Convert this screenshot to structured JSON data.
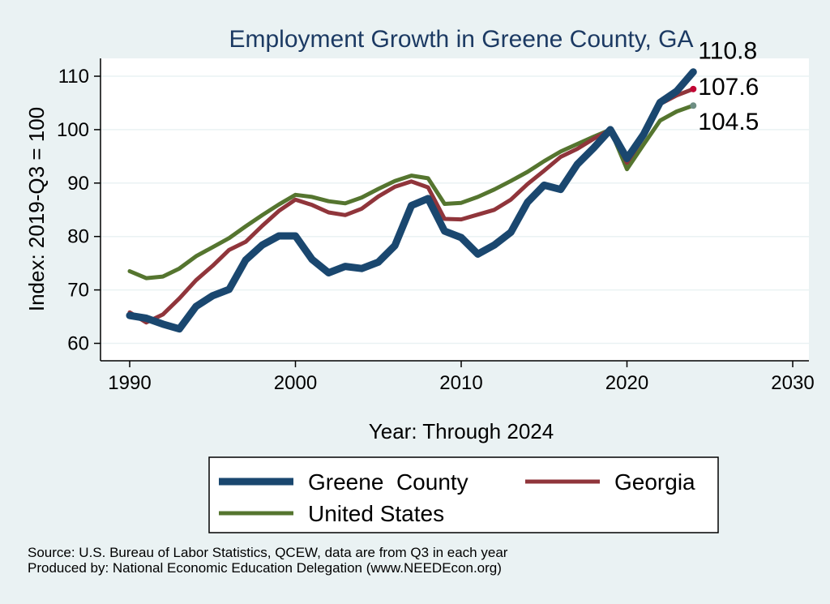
{
  "chart_data": {
    "type": "line",
    "title": "Employment Growth in Greene County, GA",
    "xlabel": "Year: Through 2024",
    "ylabel": "Index: 2019-Q3 = 100",
    "xlim": [
      1990,
      2030
    ],
    "ylim": [
      60,
      113
    ],
    "xticks": [
      1990,
      2000,
      2010,
      2020,
      2030
    ],
    "yticks": [
      60,
      70,
      80,
      90,
      100,
      110
    ],
    "grid": "horizontal",
    "legend_position": "bottom",
    "x": [
      1990,
      1991,
      1992,
      1993,
      1994,
      1995,
      1996,
      1997,
      1998,
      1999,
      2000,
      2001,
      2002,
      2003,
      2004,
      2005,
      2006,
      2007,
      2008,
      2009,
      2010,
      2011,
      2012,
      2013,
      2014,
      2015,
      2016,
      2017,
      2018,
      2019,
      2020,
      2021,
      2022,
      2023,
      2024
    ],
    "series": [
      {
        "name": "Greene  County",
        "color": "#1a476f",
        "width": 9,
        "values": [
          65.2,
          64.7,
          63.6,
          62.7,
          66.9,
          68.9,
          70.1,
          75.6,
          78.4,
          80.1,
          80.1,
          75.7,
          73.2,
          74.4,
          74.0,
          75.2,
          78.3,
          85.8,
          87.1,
          81.0,
          79.8,
          76.7,
          78.4,
          80.8,
          86.4,
          89.6,
          88.8,
          93.5,
          96.6,
          100.0,
          94.6,
          99.1,
          105.1,
          107.2,
          110.8
        ],
        "end_label": "110.8",
        "marker_color": "#1a476f"
      },
      {
        "name": "Georgia",
        "color": "#90353b",
        "width": 5,
        "values": [
          65.8,
          63.9,
          65.4,
          68.4,
          71.8,
          74.5,
          77.5,
          79.0,
          82.0,
          84.8,
          86.9,
          85.9,
          84.5,
          84.0,
          85.2,
          87.5,
          89.3,
          90.3,
          89.2,
          83.3,
          83.2,
          84.1,
          85.0,
          86.9,
          89.8,
          92.3,
          94.9,
          96.4,
          98.3,
          100.0,
          93.8,
          98.6,
          104.8,
          106.4,
          107.6
        ],
        "end_label": "107.6",
        "marker_color": "#c10534"
      },
      {
        "name": "United States",
        "color": "#55752f",
        "width": 5,
        "values": [
          73.5,
          72.2,
          72.5,
          74.0,
          76.3,
          78.0,
          79.7,
          81.9,
          84.0,
          86.0,
          87.8,
          87.4,
          86.6,
          86.2,
          87.3,
          88.9,
          90.4,
          91.4,
          90.9,
          86.1,
          86.3,
          87.4,
          88.8,
          90.4,
          92.1,
          94.1,
          95.9,
          97.3,
          98.7,
          100.0,
          92.6,
          97.2,
          101.7,
          103.4,
          104.5
        ],
        "end_label": "104.5",
        "marker_color": "#6e8e84"
      }
    ],
    "source_lines": [
      "Source: U.S. Bureau of Labor Statistics, QCEW, data are from Q3 in each year",
      "Produced by: National Economic Education Delegation (www.NEEDEcon.org)"
    ]
  }
}
